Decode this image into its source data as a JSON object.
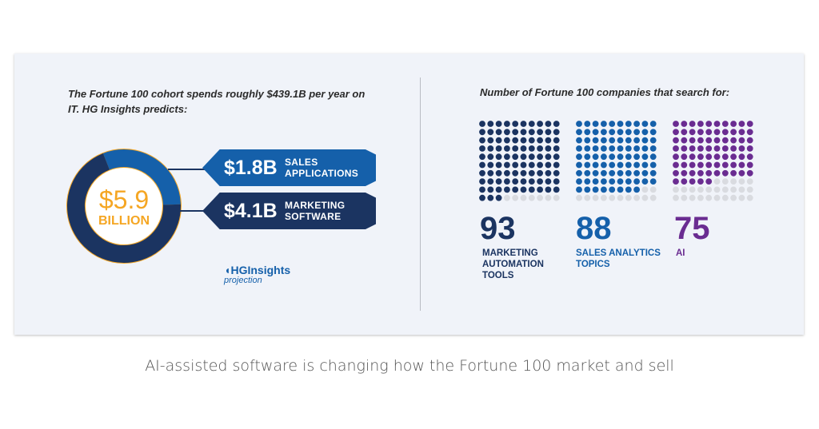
{
  "intro_text": "The Fortune 100 cohort spends roughly $439.1B per year on IT. HG Insights predicts:",
  "right_title": "Number of Fortune 100 companies that search for:",
  "logo": {
    "brand": "HGInsights",
    "subtitle": "projection"
  },
  "caption": "AI-assisted software is changing how the Fortune 100 market and sell",
  "colors": {
    "navy": "#1b3461",
    "blue": "#1560aa",
    "purple": "#6a2c91",
    "orange": "#f5a623",
    "empty_dot": "#d9dbe0"
  },
  "chart_data": [
    {
      "type": "pie",
      "subtype": "donut",
      "center_value": "$5.9",
      "center_label": "BILLION",
      "slices": [
        {
          "amount_label": "$1.8B",
          "label": "SALES APPLICATIONS",
          "value": 1.8,
          "color": "#1560aa"
        },
        {
          "amount_label": "$4.1B",
          "label": "MARKETING SOFTWARE",
          "value": 4.1,
          "color": "#1b3461"
        }
      ]
    },
    {
      "type": "waffle",
      "total": 100,
      "series": [
        {
          "value": 93,
          "value_label": "93",
          "label": "MARKETING AUTOMATION TOOLS",
          "color": "#1b3461"
        },
        {
          "value": 88,
          "value_label": "88",
          "label": "SALES ANALYTICS TOPICS",
          "color": "#1560aa"
        },
        {
          "value": 75,
          "value_label": "75",
          "label": "AI",
          "color": "#6a2c91"
        }
      ]
    }
  ]
}
